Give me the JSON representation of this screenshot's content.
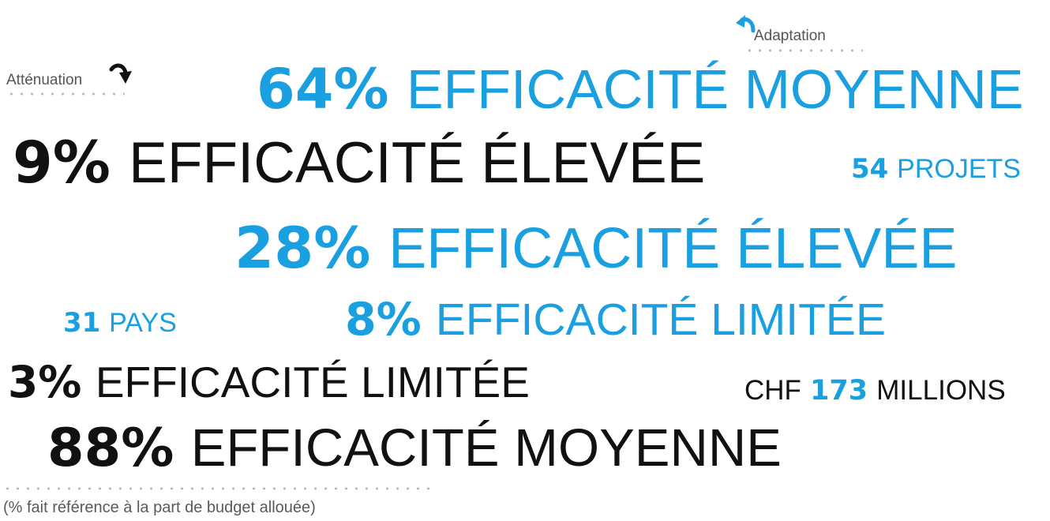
{
  "legend": {
    "mitigation_label": "Atténuation",
    "adaptation_label": "Adaptation"
  },
  "colors": {
    "adaptation": "#1a9fe0",
    "mitigation": "#111111",
    "dots": "#b8b8b8",
    "note": "#5a5a5a"
  },
  "icons": {
    "mitigation": "curved-arrow-down-right-icon",
    "adaptation": "curved-arrow-down-left-icon"
  },
  "statements": [
    {
      "value": "64%",
      "label": "EFFICACITÉ MOYENNE",
      "group": "Adaptation"
    },
    {
      "value": "9%",
      "label": "EFFICACITÉ ÉLEVÉE",
      "group": "Atténuation"
    },
    {
      "value": "28%",
      "label": "EFFICACITÉ ÉLEVÉE",
      "group": "Adaptation"
    },
    {
      "value": "8%",
      "label": "EFFICACITÉ LIMITÉE",
      "group": "Adaptation"
    },
    {
      "value": "3%",
      "label": "EFFICACITÉ LIMITÉE",
      "group": "Atténuation"
    },
    {
      "value": "88%",
      "label": "EFFICACITÉ MOYENNE",
      "group": "Atténuation"
    }
  ],
  "stats": {
    "projects": {
      "number": "54",
      "label": "PROJETS"
    },
    "countries": {
      "number": "31",
      "label": "PAYS"
    },
    "budget": {
      "currency": "CHF",
      "number": "173",
      "label": "MILLIONS"
    }
  },
  "footnote": "(% fait référence à la part de budget allouée)"
}
